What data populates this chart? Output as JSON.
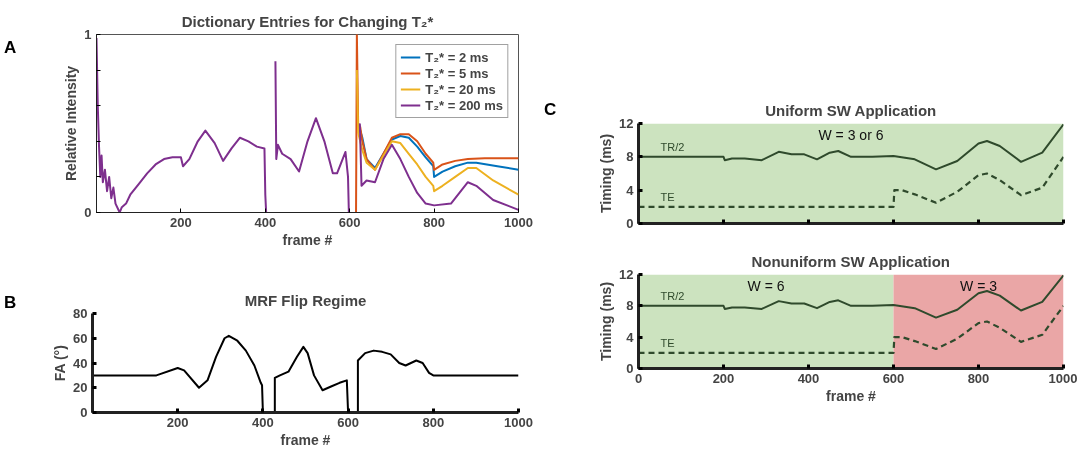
{
  "chart_data": [
    {
      "type": "line",
      "title": "Dictionary Entries for Changing T₂*",
      "xlabel": "frame #",
      "ylabel": "Relative Intensity",
      "annotations": [
        "A"
      ],
      "xlim": [
        0,
        1000
      ],
      "xticks": [
        {
          "value": 0,
          "label": null
        },
        200,
        400,
        600,
        800,
        1000
      ],
      "ylim": [
        0,
        1
      ],
      "yticks": [
        0,
        {
          "value": 0.2,
          "label": null
        },
        {
          "value": 0.4,
          "label": null
        },
        {
          "value": 0.6,
          "label": null
        },
        {
          "value": 0.8,
          "label": null
        },
        1
      ],
      "grid": false,
      "legend": "top right",
      "series": [
        {
          "name": "T₂* = 2 ms",
          "color": "#0072bd",
          "x": [
            620,
            630,
            640,
            660,
            680,
            700,
            720,
            740,
            760,
            780,
            798,
            800,
            820,
            850,
            880,
            900,
            950,
            1000
          ],
          "values": [
            0.5,
            0.42,
            0.3,
            0.25,
            0.33,
            0.41,
            0.43,
            0.42,
            0.37,
            0.31,
            0.26,
            0.2,
            0.23,
            0.26,
            0.28,
            0.28,
            0.26,
            0.24
          ]
        },
        {
          "name": "T₂* = 5 ms",
          "color": "#d95319",
          "x": [
            615,
            617,
            620,
            625,
            630,
            640,
            660,
            680,
            700,
            720,
            740,
            760,
            780,
            798,
            800,
            820,
            850,
            880,
            920,
            1000
          ],
          "values": [
            0.0,
            1.0,
            0.5,
            0.48,
            0.4,
            0.3,
            0.24,
            0.33,
            0.42,
            0.44,
            0.44,
            0.4,
            0.33,
            0.28,
            0.24,
            0.27,
            0.29,
            0.3,
            0.305,
            0.305
          ]
        },
        {
          "name": "T₂* = 20 ms",
          "color": "#edb120",
          "x": [
            617,
            620,
            630,
            640,
            660,
            680,
            700,
            720,
            740,
            760,
            780,
            798,
            800,
            820,
            850,
            880,
            900,
            940,
            1000
          ],
          "values": [
            0.8,
            0.45,
            0.35,
            0.28,
            0.24,
            0.32,
            0.4,
            0.39,
            0.33,
            0.27,
            0.2,
            0.15,
            0.12,
            0.15,
            0.2,
            0.25,
            0.25,
            0.18,
            0.1
          ]
        },
        {
          "name": "T₂* = 200 ms",
          "color": "#7e2f8e",
          "x": [
            0,
            3,
            6,
            9,
            12,
            15,
            20,
            25,
            30,
            35,
            40,
            45,
            55,
            60,
            70,
            80,
            100,
            120,
            140,
            160,
            180,
            200,
            205,
            220,
            240,
            258,
            280,
            300,
            320,
            340,
            360,
            380,
            398,
            400,
            402,
            410,
            424,
            426,
            430,
            440,
            460,
            480,
            500,
            520,
            540,
            560,
            570,
            590,
            596,
            598,
            610,
            624,
            628,
            640,
            660,
            680,
            700,
            720,
            740,
            760,
            780,
            800,
            840,
            880,
            900,
            940,
            1000
          ],
          "values": [
            0.98,
            0.6,
            0.37,
            0.2,
            0.32,
            0.17,
            0.24,
            0.12,
            0.2,
            0.08,
            0.14,
            0.05,
            0.0,
            0.03,
            0.05,
            0.1,
            0.16,
            0.22,
            0.27,
            0.3,
            0.31,
            0.31,
            0.26,
            0.3,
            0.4,
            0.46,
            0.39,
            0.29,
            0.36,
            0.42,
            0.4,
            0.37,
            0.36,
            0.1,
            0.0,
            null,
            0.85,
            0.3,
            0.38,
            0.33,
            0.3,
            0.23,
            0.4,
            0.53,
            0.4,
            0.22,
            0.22,
            0.34,
            0.2,
            0.0,
            null,
            0.5,
            0.15,
            0.18,
            0.17,
            0.3,
            0.38,
            0.3,
            0.2,
            0.11,
            0.05,
            0.04,
            0.05,
            0.17,
            0.15,
            0.07,
            0.015
          ]
        }
      ]
    },
    {
      "type": "line",
      "title": "MRF Flip Regime",
      "xlabel": "frame #",
      "ylabel": "FA (°)",
      "annotations": [
        "B"
      ],
      "xlim": [
        0,
        1000
      ],
      "xticks": [
        {
          "value": 0,
          "label": null
        },
        200,
        400,
        600,
        800,
        1000
      ],
      "ylim": [
        0,
        80
      ],
      "yticks": [
        0,
        20,
        40,
        60,
        80
      ],
      "grid": false,
      "series": [
        {
          "color": "#000000",
          "x": [
            0,
            150,
            200,
            215,
            250,
            270,
            290,
            310,
            320,
            340,
            360,
            380,
            395,
            398,
            400,
            414,
            428,
            428,
            440,
            460,
            480,
            495,
            505,
            520,
            540,
            560,
            580,
            597,
            600,
            612,
            623,
            623,
            640,
            660,
            680,
            700,
            720,
            735,
            760,
            775,
            790,
            800,
            1000
          ],
          "values": [
            30,
            30,
            36,
            34,
            20,
            26,
            45,
            60,
            62,
            58,
            50,
            38,
            24,
            22,
            0,
            null,
            0,
            28,
            30,
            33,
            45,
            53,
            48,
            30,
            18,
            21,
            24,
            26,
            0,
            null,
            0,
            42,
            48,
            50,
            49,
            47,
            40,
            38,
            42,
            40,
            32,
            30,
            30
          ]
        }
      ]
    },
    {
      "type": "line",
      "title": "Uniform SW Application",
      "ylabel": "Timing (ms)",
      "annotations": [
        "C"
      ],
      "xlim": [
        0,
        1000
      ],
      "xticks": [
        0,
        200,
        400,
        600,
        800,
        1000
      ],
      "ylim": [
        0,
        12
      ],
      "yticks": [
        0,
        4,
        8,
        12
      ],
      "grid": false,
      "tick_labels": "y",
      "bands": [
        {
          "axis": "x",
          "from": 0,
          "to": 1000,
          "label": "W = 3 or 6",
          "color": "#cce3bf"
        }
      ],
      "series": [
        {
          "name": "TR/2",
          "color": "#2f4a2c",
          "line_style": "solid",
          "x": [
            0,
            200,
            203,
            220,
            250,
            290,
            330,
            360,
            390,
            420,
            450,
            470,
            500,
            550,
            600,
            650,
            700,
            750,
            800,
            820,
            850,
            900,
            950,
            1000
          ],
          "values": [
            8,
            8,
            7.6,
            7.8,
            7.8,
            7.6,
            8.6,
            8.3,
            8.3,
            7.7,
            8.5,
            8.7,
            8.0,
            8.0,
            8.1,
            7.7,
            6.5,
            7.5,
            9.6,
            9.9,
            9.3,
            7.4,
            8.5,
            11.9
          ]
        },
        {
          "name": "TE",
          "color": "#2f4a2c",
          "line_style": "dashed",
          "x": [
            0,
            600,
            602,
            620,
            650,
            700,
            750,
            800,
            820,
            850,
            900,
            950,
            1000
          ],
          "values": [
            2,
            2,
            4,
            4,
            3.5,
            2.5,
            3.8,
            5.8,
            6.0,
            5.2,
            3.4,
            4.3,
            8
          ]
        }
      ]
    },
    {
      "type": "line",
      "title": "Nonuniform SW Application",
      "xlabel": "frame #",
      "ylabel": "Timing (ms)",
      "xlim": [
        0,
        1000
      ],
      "xticks": [
        0,
        200,
        400,
        600,
        800,
        1000
      ],
      "ylim": [
        0,
        12
      ],
      "yticks": [
        0,
        4,
        8,
        12
      ],
      "grid": false,
      "bands": [
        {
          "axis": "x",
          "from": 0,
          "to": 600,
          "label": "W = 6",
          "color": "#cce3bf"
        },
        {
          "axis": "x",
          "from": 600,
          "to": 1000,
          "label": "W = 3",
          "color": "#eaa6a6"
        }
      ],
      "series": [
        {
          "name": "TR/2",
          "color": "#2f4a2c",
          "line_style": "solid",
          "x": [
            0,
            200,
            203,
            220,
            250,
            290,
            330,
            360,
            390,
            420,
            450,
            470,
            500,
            550,
            600,
            650,
            700,
            750,
            800,
            820,
            850,
            900,
            950,
            1000
          ],
          "values": [
            8,
            8,
            7.6,
            7.8,
            7.8,
            7.6,
            8.6,
            8.3,
            8.3,
            7.7,
            8.5,
            8.7,
            8.0,
            8.0,
            8.1,
            7.7,
            6.5,
            7.5,
            9.6,
            9.9,
            9.3,
            7.4,
            8.5,
            11.9
          ]
        },
        {
          "name": "TE",
          "color": "#2f4a2c",
          "line_style": "dashed",
          "x": [
            0,
            600,
            602,
            620,
            650,
            700,
            750,
            800,
            820,
            850,
            900,
            950,
            1000
          ],
          "values": [
            2,
            2,
            4,
            4,
            3.5,
            2.5,
            3.8,
            5.8,
            6.0,
            5.2,
            3.4,
            4.3,
            8
          ]
        }
      ]
    }
  ]
}
